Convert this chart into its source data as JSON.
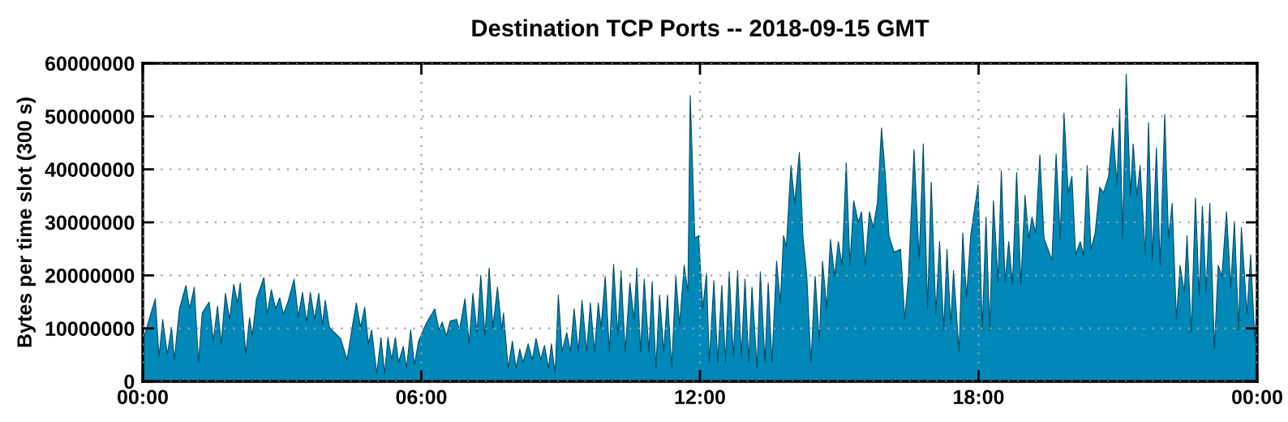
{
  "chart_data": {
    "type": "area",
    "title": "Destination TCP Ports -- 2018-09-15 GMT",
    "ylabel": "Bytes per time slot (300 s)",
    "xlim": [
      0,
      24
    ],
    "xticks": [
      {
        "value": 0,
        "label": "00:00"
      },
      {
        "value": 6,
        "label": "06:00"
      },
      {
        "value": 12,
        "label": "12:00"
      },
      {
        "value": 18,
        "label": "18:00"
      },
      {
        "value": 24,
        "label": "00:00"
      }
    ],
    "ylim": [
      0,
      60000000
    ],
    "yticks": [
      0,
      10000000,
      20000000,
      30000000,
      40000000,
      50000000,
      60000000
    ],
    "grid": true,
    "legend": false,
    "series": [
      {
        "color": "#0088b8",
        "x": [
          0.0,
          0.27,
          0.35,
          0.43,
          0.53,
          0.62,
          0.68,
          0.79,
          0.93,
          1.01,
          1.11,
          1.2,
          1.28,
          1.43,
          1.52,
          1.61,
          1.69,
          1.78,
          1.87,
          1.96,
          2.04,
          2.1,
          2.22,
          2.3,
          2.36,
          2.45,
          2.61,
          2.68,
          2.77,
          2.86,
          2.95,
          3.03,
          3.12,
          3.26,
          3.35,
          3.44,
          3.53,
          3.61,
          3.7,
          3.79,
          3.87,
          3.93,
          4.02,
          4.26,
          4.4,
          4.51,
          4.6,
          4.69,
          4.78,
          4.86,
          4.93,
          5.04,
          5.13,
          5.21,
          5.28,
          5.36,
          5.44,
          5.51,
          5.61,
          5.68,
          5.77,
          5.85,
          5.94,
          6.12,
          6.29,
          6.38,
          6.45,
          6.54,
          6.62,
          6.76,
          6.82,
          6.94,
          7.03,
          7.11,
          7.2,
          7.28,
          7.37,
          7.46,
          7.54,
          7.64,
          7.73,
          7.77,
          7.87,
          7.96,
          8.04,
          8.12,
          8.19,
          8.3,
          8.39,
          8.47,
          8.57,
          8.65,
          8.74,
          8.8,
          8.88,
          8.95,
          9.03,
          9.13,
          9.21,
          9.29,
          9.38,
          9.46,
          9.56,
          9.64,
          9.73,
          9.81,
          9.87,
          9.96,
          10.05,
          10.14,
          10.23,
          10.3,
          10.39,
          10.49,
          10.58,
          10.64,
          10.72,
          10.8,
          10.9,
          10.97,
          11.05,
          11.13,
          11.22,
          11.3,
          11.39,
          11.48,
          11.56,
          11.66,
          11.74,
          11.79,
          11.89,
          11.97,
          12.06,
          12.14,
          12.2,
          12.3,
          12.38,
          12.47,
          12.55,
          12.63,
          12.72,
          12.81,
          12.89,
          12.97,
          13.05,
          13.12,
          13.23,
          13.3,
          13.4,
          13.47,
          13.55,
          13.65,
          13.73,
          13.8,
          13.86,
          13.96,
          14.04,
          14.14,
          14.22,
          14.3,
          14.39,
          14.48,
          14.57,
          14.64,
          14.73,
          14.81,
          14.9,
          14.98,
          15.06,
          15.15,
          15.23,
          15.31,
          15.41,
          15.48,
          15.56,
          15.65,
          15.73,
          15.82,
          15.91,
          15.99,
          16.07,
          16.18,
          16.32,
          16.41,
          16.49,
          16.61,
          16.72,
          16.81,
          16.9,
          16.98,
          17.08,
          17.16,
          17.25,
          17.32,
          17.4,
          17.46,
          17.58,
          17.66,
          17.74,
          17.83,
          17.99,
          18.08,
          18.16,
          18.24,
          18.32,
          18.42,
          18.49,
          18.57,
          18.65,
          18.73,
          18.82,
          18.91,
          19.0,
          19.08,
          19.15,
          19.23,
          19.32,
          19.41,
          19.58,
          19.67,
          19.76,
          19.84,
          19.93,
          20.01,
          20.09,
          20.19,
          20.26,
          20.34,
          20.42,
          20.51,
          20.61,
          20.69,
          20.8,
          20.89,
          20.98,
          21.04,
          21.1,
          21.18,
          21.27,
          21.33,
          21.41,
          21.48,
          21.59,
          21.66,
          21.74,
          21.83,
          21.91,
          22.01,
          22.09,
          22.17,
          22.26,
          22.34,
          22.43,
          22.49,
          22.58,
          22.67,
          22.75,
          22.82,
          22.9,
          22.98,
          23.08,
          23.16,
          23.24,
          23.34,
          23.43,
          23.51,
          23.6,
          23.66,
          23.78,
          23.86,
          23.95,
          24.0
        ],
        "values": [
          7600000,
          15600000,
          4600000,
          11700000,
          5100000,
          10200000,
          4100000,
          13700000,
          18100000,
          13700000,
          17800000,
          3600000,
          12900000,
          15000000,
          7600000,
          14200000,
          7100000,
          16600000,
          11700000,
          18300000,
          14800000,
          18600000,
          5100000,
          12000000,
          8600000,
          15600000,
          19600000,
          12700000,
          17300000,
          13700000,
          15800000,
          12700000,
          14800000,
          19300000,
          12200000,
          16800000,
          11200000,
          16800000,
          11700000,
          16600000,
          10700000,
          15300000,
          10200000,
          8100000,
          4100000,
          10200000,
          14800000,
          10200000,
          14000000,
          7100000,
          9700000,
          1500000,
          8300000,
          1500000,
          8300000,
          4100000,
          8300000,
          3600000,
          6600000,
          2500000,
          9700000,
          3100000,
          7600000,
          11200000,
          13700000,
          9700000,
          11200000,
          8600000,
          11400000,
          11700000,
          9700000,
          15600000,
          7100000,
          16600000,
          9200000,
          20000000,
          8600000,
          21400000,
          10200000,
          17800000,
          9700000,
          12900000,
          2500000,
          7600000,
          2500000,
          6100000,
          3600000,
          7100000,
          4100000,
          8100000,
          4100000,
          6800000,
          2500000,
          7100000,
          1500000,
          16300000,
          5600000,
          9200000,
          5600000,
          13700000,
          5600000,
          15300000,
          5600000,
          14800000,
          5600000,
          14800000,
          10200000,
          19800000,
          5600000,
          22100000,
          8600000,
          20900000,
          5600000,
          18600000,
          11700000,
          21400000,
          5600000,
          19300000,
          5600000,
          18800000,
          2500000,
          16300000,
          5600000,
          16300000,
          2500000,
          19800000,
          10700000,
          21900000,
          16800000,
          53900000,
          27000000,
          27500000,
          13700000,
          20300000,
          3600000,
          19000000,
          3600000,
          18100000,
          3600000,
          20700000,
          4600000,
          20900000,
          4600000,
          19300000,
          3600000,
          17800000,
          2500000,
          20700000,
          3600000,
          18600000,
          3600000,
          22700000,
          14800000,
          27500000,
          25400000,
          40700000,
          33600000,
          43200000,
          27000000,
          20000000,
          3600000,
          19800000,
          7600000,
          22700000,
          13700000,
          26800000,
          19800000,
          26400000,
          21900000,
          41200000,
          21900000,
          34100000,
          30000000,
          32000000,
          21900000,
          32000000,
          29000000,
          33600000,
          47800000,
          39200000,
          27500000,
          24400000,
          24900000,
          11700000,
          19800000,
          43700000,
          22900000,
          44800000,
          13700000,
          37600000,
          12700000,
          26400000,
          9700000,
          24900000,
          10700000,
          20900000,
          5600000,
          28000000,
          15800000,
          27500000,
          37100000,
          9700000,
          31000000,
          9700000,
          34100000,
          18800000,
          39700000,
          18800000,
          26400000,
          18300000,
          39400000,
          18300000,
          35100000,
          27000000,
          31000000,
          28000000,
          42700000,
          27000000,
          22900000,
          42900000,
          27000000,
          50600000,
          35600000,
          38700000,
          23900000,
          26400000,
          23900000,
          40700000,
          24900000,
          28000000,
          36600000,
          35600000,
          38700000,
          47800000,
          37100000,
          51400000,
          27000000,
          58000000,
          35100000,
          44800000,
          35100000,
          40700000,
          23900000,
          48800000,
          22900000,
          44000000,
          21900000,
          50400000,
          27000000,
          33600000,
          11700000,
          21900000,
          16800000,
          27500000,
          9200000,
          34600000,
          16300000,
          33100000,
          16800000,
          33600000,
          6100000,
          21900000,
          19800000,
          32000000,
          17800000,
          30200000,
          9700000,
          29000000,
          12700000,
          23900000,
          7600000,
          15800000
        ]
      }
    ]
  }
}
